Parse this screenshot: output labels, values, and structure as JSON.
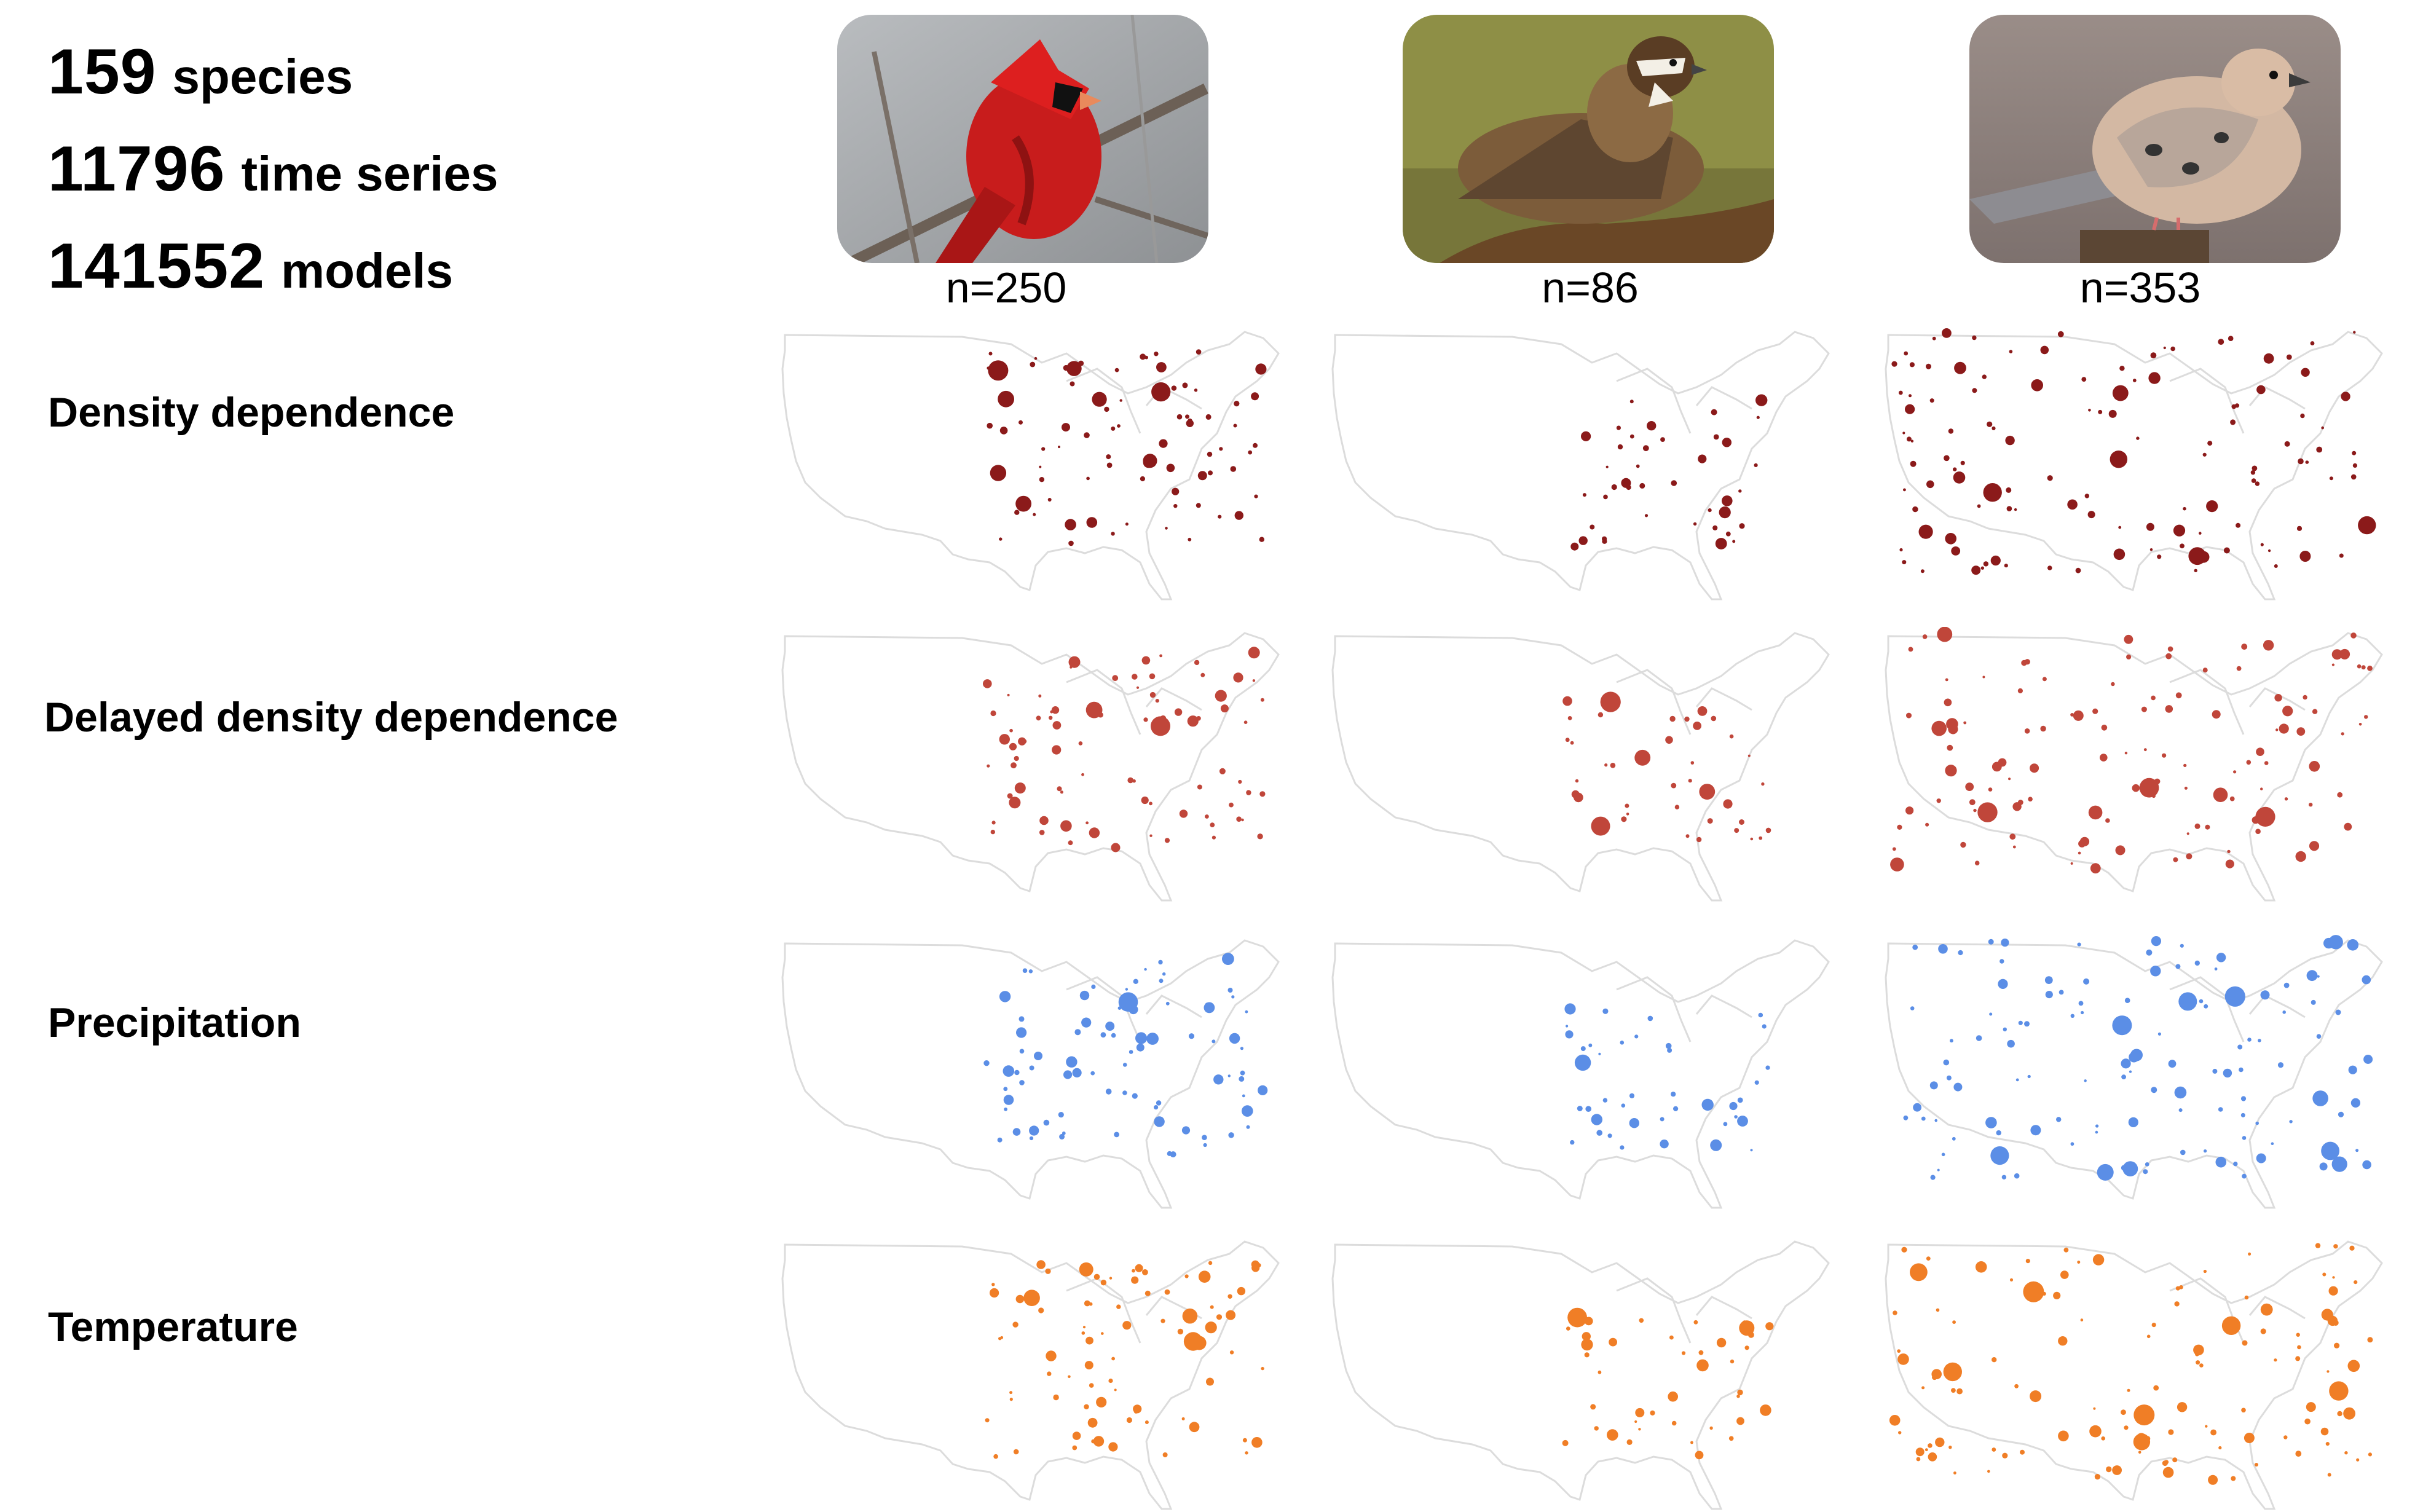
{
  "stats": {
    "species": {
      "number": "159",
      "label": "species"
    },
    "series": {
      "number": "11796",
      "label": "time series"
    },
    "models": {
      "number": "141552",
      "label": "models"
    }
  },
  "columns": [
    {
      "id": "cardinal",
      "n_label": "n=250"
    },
    {
      "id": "quail",
      "n_label": "n=86"
    },
    {
      "id": "dove",
      "n_label": "n=353"
    }
  ],
  "rows": [
    {
      "id": "density",
      "label": "Density dependence",
      "color": "#8b1a1a"
    },
    {
      "id": "delayed",
      "label": "Delayed density dependence",
      "color": "#c0463a"
    },
    {
      "id": "precip",
      "label": "Precipitation",
      "color": "#5b8ee6"
    },
    {
      "id": "temp",
      "label": "Temperature",
      "color": "#f07e26"
    }
  ],
  "map_style": {
    "outline_color": "#dcdcdc",
    "background": "#ffffff"
  }
}
